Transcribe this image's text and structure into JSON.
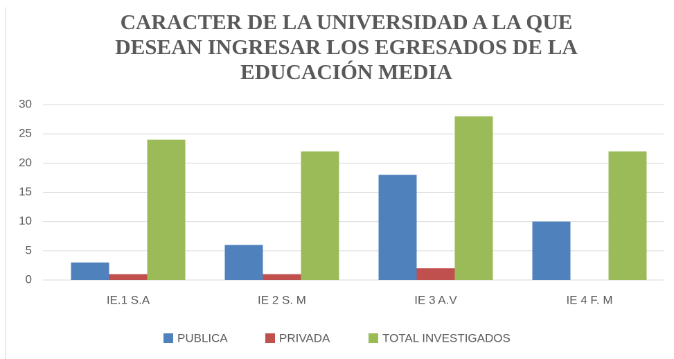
{
  "chart_data": {
    "type": "bar",
    "title": "CARACTER DE LA UNIVERSIDAD A LA QUE DESEAN INGRESAR LOS EGRESADOS DE LA EDUCACIÓN MEDIA",
    "categories": [
      "IE.1 S.A",
      "IE 2 S. M",
      "IE 3 A.V",
      "IE 4 F. M"
    ],
    "series": [
      {
        "name": "PUBLICA",
        "color": "#4f81bd",
        "values": [
          3,
          6,
          18,
          10
        ]
      },
      {
        "name": "PRIVADA",
        "color": "#c0504d",
        "values": [
          1,
          1,
          2,
          0
        ]
      },
      {
        "name": "TOTAL INVESTIGADOS",
        "color": "#9bbb59",
        "values": [
          24,
          22,
          28,
          22
        ]
      }
    ],
    "ylim": [
      0,
      30
    ],
    "yticks": [
      0,
      5,
      10,
      15,
      20,
      25,
      30
    ],
    "grid": true,
    "legend": "bottom"
  }
}
